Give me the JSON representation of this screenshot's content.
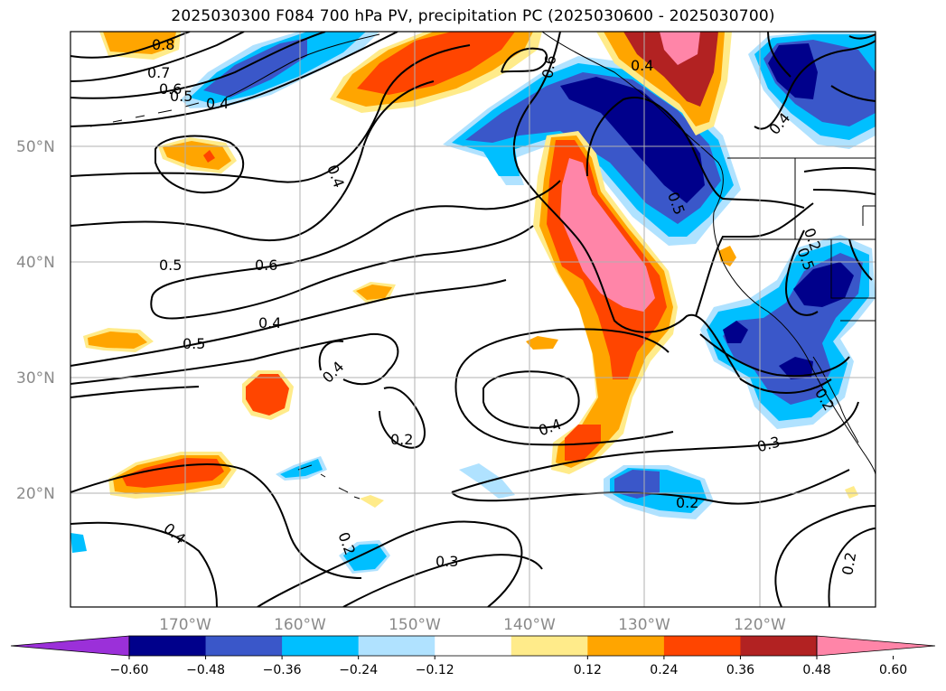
{
  "title": "2025030300 F084 700 hPa PV, precipitation PC (2025030600 - 2025030700)",
  "lat_labels": [
    "50°N",
    "40°N",
    "30°N",
    "20°N"
  ],
  "lon_labels": [
    "170°W",
    "160°W",
    "150°W",
    "140°W",
    "130°W",
    "120°W"
  ],
  "contour_labels": [
    "0.8",
    "0.7",
    "0.6",
    "0.5",
    "0.4",
    "0.4",
    "0.5",
    "0.6",
    "0.4",
    "0.5",
    "0.4",
    "0.4",
    "0.2",
    "0.4",
    "0.2",
    "0.2",
    "0.3",
    "0.2",
    "0.3",
    "0.6",
    "0.4",
    "0.5",
    "0.5",
    "0.2",
    "0.4",
    "0.2"
  ],
  "colorbar": {
    "ticks": [
      "−0.60",
      "−0.48",
      "−0.36",
      "−0.24",
      "−0.12",
      "0.12",
      "0.24",
      "0.36",
      "0.48",
      "0.60"
    ],
    "colors": [
      "#9b30d9",
      "#00008b",
      "#3a57c9",
      "#00bfff",
      "#b0e2ff",
      "#ffffff",
      "#ffeb8a",
      "#ffa500",
      "#ff4500",
      "#b22222",
      "#ff85a8"
    ]
  }
}
